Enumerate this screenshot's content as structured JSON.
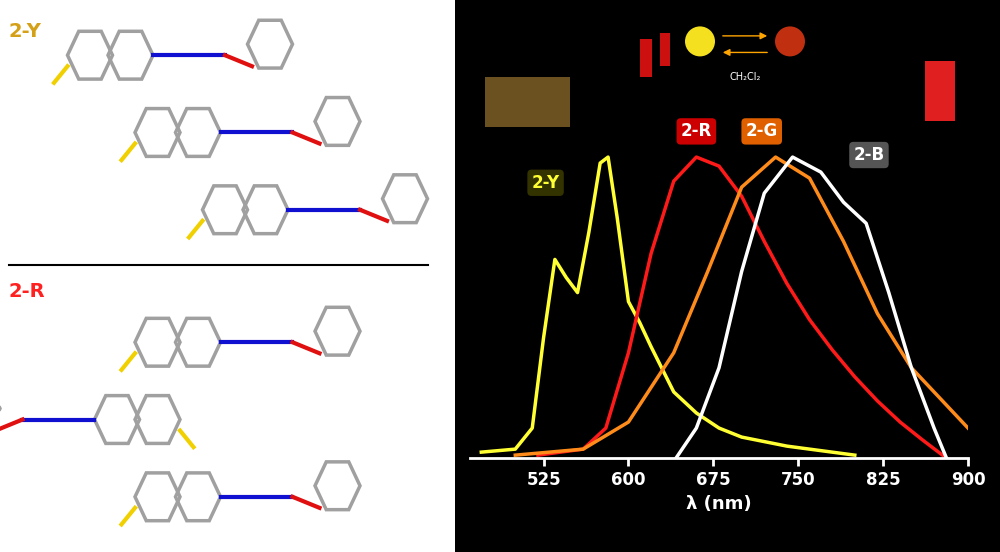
{
  "chart_data": {
    "type": "line",
    "x_label": "λ (nm)",
    "xlim": [
      460,
      900
    ],
    "xticks": [
      525,
      600,
      675,
      750,
      825,
      900
    ],
    "ylim": [
      0,
      1.1
    ],
    "tick_labels": "x",
    "grid": false,
    "series": [
      {
        "name": "2-Y",
        "color": "#ffff33",
        "x": [
          470,
          500,
          515,
          525,
          535,
          545,
          555,
          565,
          575,
          582,
          590,
          600,
          610,
          620,
          640,
          660,
          680,
          700,
          740,
          780,
          800
        ],
        "values": [
          0.02,
          0.03,
          0.1,
          0.4,
          0.66,
          0.6,
          0.55,
          0.75,
          0.98,
          1.0,
          0.8,
          0.52,
          0.45,
          0.37,
          0.22,
          0.15,
          0.1,
          0.07,
          0.04,
          0.02,
          0.01
        ]
      },
      {
        "name": "2-R",
        "color": "#ff1a1a",
        "x": [
          520,
          560,
          580,
          600,
          620,
          640,
          660,
          680,
          700,
          720,
          740,
          760,
          780,
          800,
          820,
          840,
          860,
          881
        ],
        "values": [
          0.01,
          0.03,
          0.1,
          0.35,
          0.68,
          0.92,
          1.0,
          0.97,
          0.87,
          0.72,
          0.58,
          0.46,
          0.36,
          0.27,
          0.19,
          0.12,
          0.06,
          0.0
        ]
      },
      {
        "name": "2-G",
        "color": "#ff8c1a",
        "x": [
          500,
          560,
          600,
          640,
          670,
          700,
          730,
          760,
          790,
          820,
          850,
          880,
          900
        ],
        "values": [
          0.01,
          0.03,
          0.12,
          0.35,
          0.62,
          0.9,
          1.0,
          0.93,
          0.72,
          0.48,
          0.3,
          0.18,
          0.1
        ]
      },
      {
        "name": "2-B",
        "color": "#ffffff",
        "x": [
          642,
          660,
          680,
          700,
          720,
          745,
          770,
          790,
          810,
          830,
          850,
          870,
          881
        ],
        "values": [
          0.0,
          0.1,
          0.3,
          0.62,
          0.88,
          1.0,
          0.95,
          0.85,
          0.78,
          0.55,
          0.3,
          0.1,
          0.0
        ]
      }
    ],
    "annotations": [
      "CH₂Cl₂"
    ]
  },
  "structures": {
    "labels": [
      {
        "text": "2-Y",
        "color": "#d4a017"
      },
      {
        "text": "2-R",
        "color": "#ff2020"
      }
    ]
  }
}
